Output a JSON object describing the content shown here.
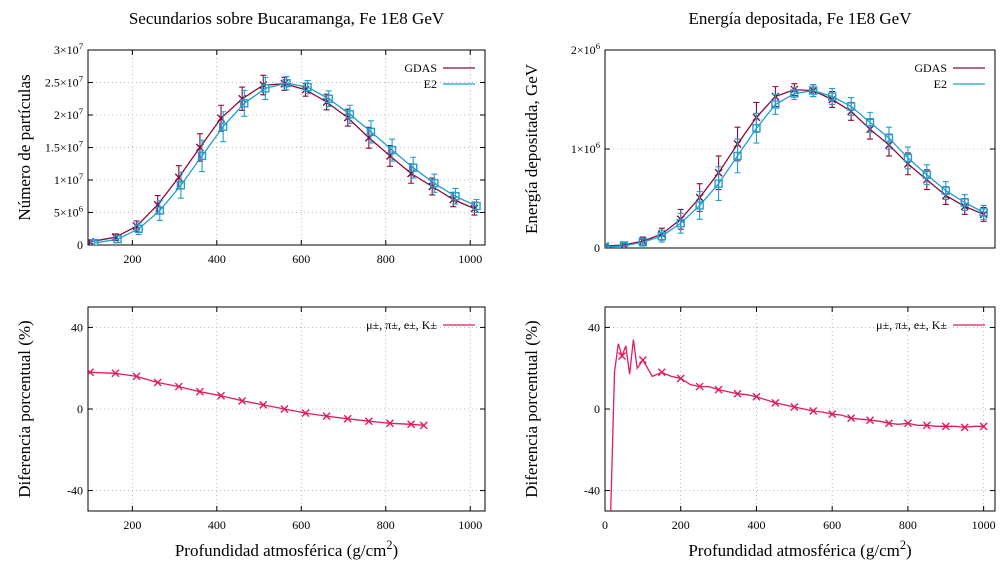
{
  "colors": {
    "gdas": "#8b0a3a",
    "e2": "#1f9fd0",
    "diff": "#e01c5c",
    "grid": "#aaaaaa"
  },
  "figure": {
    "xlabel": "Profundidad atmosférica (g/cm²)"
  },
  "chart_data": [
    {
      "id": "top-left",
      "type": "line",
      "title": "Secundarios sobre Bucaramanga, Fe 1E8 GeV",
      "xlabel": "",
      "ylabel": "Número de partículas",
      "xlim": [
        95,
        1035
      ],
      "ylim": [
        0,
        30000000
      ],
      "xticks": [
        200,
        400,
        600,
        800,
        1000
      ],
      "yticks": [
        {
          "v": 0,
          "label": "0"
        },
        {
          "v": 5000000,
          "label": "5×10⁶"
        },
        {
          "v": 10000000,
          "label": "1×10⁷"
        },
        {
          "v": 15000000,
          "label": "1.5×10⁷"
        },
        {
          "v": 20000000,
          "label": "2×10⁷"
        },
        {
          "v": 25000000,
          "label": "2.5×10⁷"
        },
        {
          "v": 30000000,
          "label": "3×10⁷"
        }
      ],
      "grid": true,
      "legend": "top-right",
      "series": [
        {
          "name": "GDAS",
          "color": "gdas",
          "marker": "x",
          "x": [
            100,
            160,
            210,
            260,
            310,
            360,
            410,
            460,
            510,
            560,
            610,
            660,
            710,
            760,
            810,
            860,
            910,
            960,
            1010
          ],
          "y": [
            500000,
            1200000,
            2900000,
            6200000,
            10400000,
            15000000,
            19500000,
            22500000,
            24600000,
            24800000,
            23900000,
            22000000,
            19600000,
            16500000,
            13700000,
            11000000,
            9000000,
            7000000,
            5600000
          ],
          "err": [
            300000,
            500000,
            800000,
            1400000,
            1800000,
            2100000,
            2000000,
            1800000,
            1500000,
            1000000,
            1000000,
            1200000,
            1300000,
            1600000,
            1600000,
            1500000,
            1300000,
            1100000,
            1000000
          ]
        },
        {
          "name": "E2",
          "color": "e2",
          "marker": "square",
          "x": [
            110,
            165,
            215,
            265,
            315,
            365,
            415,
            465,
            515,
            565,
            615,
            665,
            715,
            765,
            815,
            865,
            915,
            965,
            1015
          ],
          "y": [
            300000,
            900000,
            2500000,
            5300000,
            9200000,
            13700000,
            18200000,
            21800000,
            24100000,
            24900000,
            24300000,
            22500000,
            20100000,
            17400000,
            14600000,
            11900000,
            9500000,
            7500000,
            6000000
          ],
          "err": [
            300000,
            500000,
            900000,
            1500000,
            2000000,
            2400000,
            2300000,
            2000000,
            1700000,
            1000000,
            1000000,
            1200000,
            1400000,
            1700000,
            1700000,
            1600000,
            1400000,
            1200000,
            1000000
          ]
        }
      ]
    },
    {
      "id": "top-right",
      "type": "line",
      "title": "Energía depositada, Fe 1E8 GeV",
      "xlabel": "",
      "ylabel": "Energía depositada, GeV",
      "xlim": [
        0,
        1030
      ],
      "ylim": [
        0,
        2000000
      ],
      "xticks": [],
      "yticks": [
        {
          "v": 0,
          "label": "0"
        },
        {
          "v": 1000000,
          "label": "1×10⁶"
        },
        {
          "v": 2000000,
          "label": "2×10⁶"
        }
      ],
      "grid": true,
      "legend": "top-right",
      "series": [
        {
          "name": "GDAS",
          "color": "gdas",
          "marker": "x",
          "x": [
            0,
            50,
            100,
            150,
            200,
            250,
            300,
            350,
            400,
            450,
            500,
            550,
            600,
            650,
            700,
            750,
            800,
            850,
            900,
            950,
            1000
          ],
          "y": [
            20000,
            30000,
            70000,
            140000,
            290000,
            510000,
            760000,
            1050000,
            1320000,
            1530000,
            1600000,
            1590000,
            1500000,
            1380000,
            1200000,
            1040000,
            850000,
            690000,
            530000,
            420000,
            340000
          ],
          "err": [
            20000,
            30000,
            40000,
            60000,
            100000,
            140000,
            170000,
            170000,
            150000,
            100000,
            60000,
            60000,
            80000,
            90000,
            100000,
            110000,
            110000,
            100000,
            90000,
            80000,
            70000
          ]
        },
        {
          "name": "E2",
          "color": "e2",
          "marker": "square",
          "x": [
            0,
            50,
            100,
            150,
            200,
            250,
            300,
            350,
            400,
            450,
            500,
            550,
            600,
            650,
            700,
            750,
            800,
            850,
            900,
            950,
            1000
          ],
          "y": [
            10000,
            20000,
            60000,
            120000,
            250000,
            430000,
            650000,
            930000,
            1210000,
            1450000,
            1560000,
            1590000,
            1530000,
            1430000,
            1270000,
            1110000,
            910000,
            740000,
            580000,
            460000,
            360000
          ],
          "err": [
            20000,
            30000,
            40000,
            60000,
            100000,
            140000,
            170000,
            170000,
            150000,
            100000,
            60000,
            60000,
            80000,
            90000,
            100000,
            110000,
            110000,
            100000,
            90000,
            80000,
            70000
          ]
        }
      ]
    },
    {
      "id": "bottom-left",
      "type": "line",
      "title": "",
      "xlabel": "Profundidad atmosférica (g/cm²)",
      "ylabel": "Diferencia porcentual (%)",
      "xlim": [
        95,
        1035
      ],
      "ylim": [
        -50,
        50
      ],
      "xticks": [
        200,
        400,
        600,
        800,
        1000
      ],
      "yticks": [
        {
          "v": -40,
          "label": "-40"
        },
        {
          "v": 0,
          "label": "0"
        },
        {
          "v": 40,
          "label": "40"
        }
      ],
      "grid": true,
      "legend": "top-right",
      "series": [
        {
          "name": "μ±, π±, e±, K±",
          "color": "diff",
          "marker": "x",
          "x": [
            100,
            160,
            210,
            260,
            310,
            360,
            410,
            460,
            510,
            560,
            610,
            660,
            710,
            760,
            810,
            860,
            890
          ],
          "y": [
            18,
            17.5,
            16,
            13,
            11,
            8.5,
            6.5,
            4,
            2,
            0,
            -2,
            -3.5,
            -4.8,
            -6,
            -7,
            -7.5,
            -8
          ]
        }
      ]
    },
    {
      "id": "bottom-right",
      "type": "line",
      "title": "",
      "xlabel": "Profundidad atmosférica (g/cm²)",
      "ylabel": "Diferencia porcentual (%)",
      "xlim": [
        0,
        1030
      ],
      "ylim": [
        -50,
        50
      ],
      "xticks": [
        0,
        200,
        400,
        600,
        800,
        1000
      ],
      "yticks": [
        {
          "v": -40,
          "label": "-40"
        },
        {
          "v": 0,
          "label": "0"
        },
        {
          "v": 40,
          "label": "40"
        }
      ],
      "grid": true,
      "legend": "top-right",
      "series": [
        {
          "name": "μ±, π±, e±, K±",
          "color": "diff",
          "marker": "x",
          "x": [
            15,
            25,
            35,
            45,
            55,
            65,
            75,
            85,
            100,
            125,
            150,
            175,
            200,
            225,
            250,
            275,
            300,
            325,
            350,
            375,
            400,
            425,
            450,
            475,
            500,
            525,
            550,
            575,
            600,
            625,
            650,
            675,
            700,
            725,
            750,
            775,
            800,
            825,
            850,
            875,
            900,
            925,
            950,
            975,
            1000
          ],
          "y": [
            -50,
            18,
            32,
            26,
            31,
            17,
            34,
            20,
            24,
            16,
            18,
            16,
            15,
            12,
            11,
            11,
            9.5,
            8.5,
            7.5,
            7,
            6,
            4.5,
            3,
            2,
            1,
            0,
            -1,
            -1.5,
            -2.5,
            -3,
            -4.5,
            -5,
            -5.5,
            -6,
            -7,
            -7.5,
            -7,
            -8,
            -8,
            -8.5,
            -8.5,
            -8.5,
            -9,
            -8.5,
            -8.5
          ],
          "markers": [
            45,
            100,
            150,
            200,
            250,
            300,
            350,
            400,
            450,
            500,
            550,
            600,
            650,
            700,
            750,
            800,
            850,
            900,
            950,
            1000
          ]
        }
      ]
    }
  ]
}
